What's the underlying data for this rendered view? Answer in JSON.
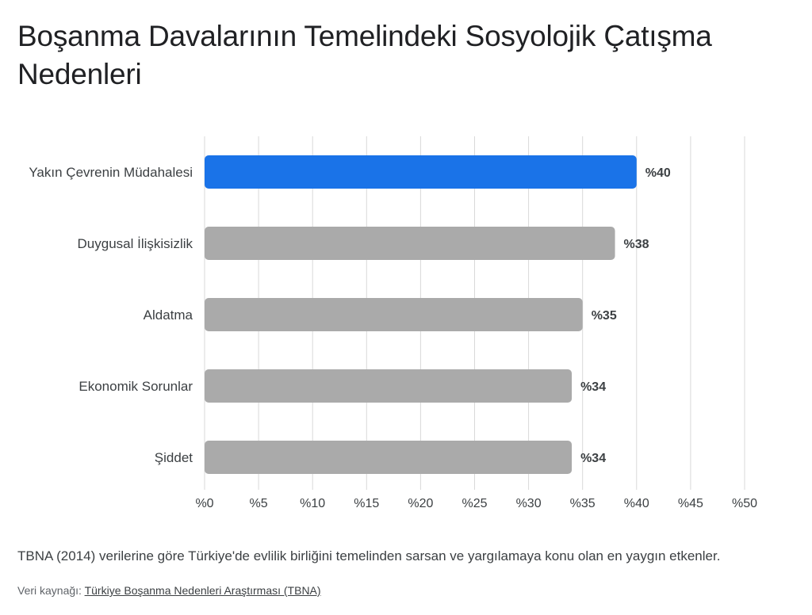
{
  "page": {
    "title": "Boşanma Davalarının Temelindeki Sosyolojik Çatışma Nedenleri",
    "note": "TBNA (2014) verilerine göre Türkiye'de evlilik birliğini temelinden sarsan ve yargılamaya konu olan en yaygın etkenler.",
    "source_prefix": "Veri kaynağı: ",
    "source_link": "Türkiye Boşanma Nedenleri Araştırması (TBNA)"
  },
  "colors": {
    "highlight": "#1a73e8",
    "bar": "#aaaaaa",
    "grid": "#d9d9d9"
  },
  "chart_data": {
    "type": "bar",
    "orientation": "horizontal",
    "title": "Boşanma Davalarının Temelindeki Sosyolojik Çatışma Nedenleri",
    "categories": [
      "Yakın Çevrenin Müdahalesi",
      "Duygusal İlişkisizlik",
      "Aldatma",
      "Ekonomik Sorunlar",
      "Şiddet"
    ],
    "values": [
      40,
      38,
      35,
      34,
      34
    ],
    "value_labels": [
      "%40",
      "%38",
      "%35",
      "%34",
      "%34"
    ],
    "highlighted_index": 0,
    "xlim": [
      0,
      50
    ],
    "xticks": [
      0,
      5,
      10,
      15,
      20,
      25,
      30,
      35,
      40,
      45,
      50
    ],
    "xtick_labels": [
      "%0",
      "%5",
      "%10",
      "%15",
      "%20",
      "%25",
      "%30",
      "%35",
      "%40",
      "%45",
      "%50"
    ],
    "grid": true,
    "xlabel": "",
    "ylabel": ""
  }
}
